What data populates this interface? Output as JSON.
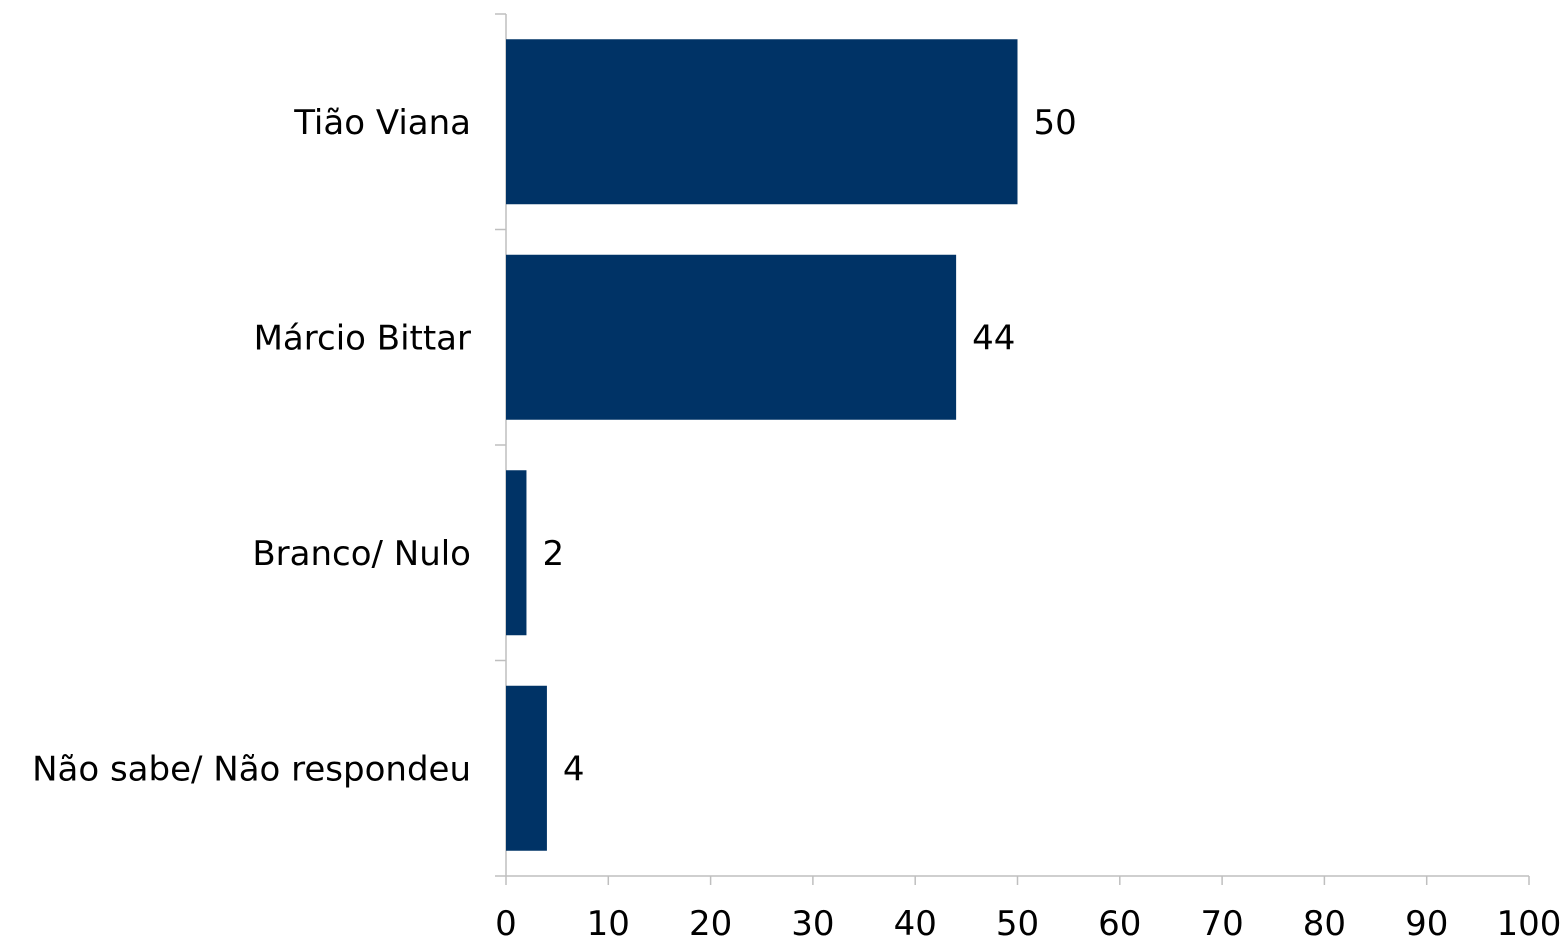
{
  "chart_data": {
    "type": "bar",
    "orientation": "horizontal",
    "categories": [
      "Tião Viana",
      "Márcio Bittar",
      "Branco/ Nulo",
      "Não sabe/ Não respondeu"
    ],
    "values": [
      50,
      44,
      2,
      4
    ],
    "data_labels": [
      "50",
      "44",
      "2",
      "4"
    ],
    "xlim": [
      0,
      100
    ],
    "x_ticks": [
      0,
      10,
      20,
      30,
      40,
      50,
      60,
      70,
      80,
      90,
      100
    ],
    "x_tick_labels": [
      "0",
      "10",
      "20",
      "30",
      "40",
      "50",
      "60",
      "70",
      "80",
      "90",
      "100"
    ],
    "title": "",
    "xlabel": "",
    "ylabel": "",
    "grid": false,
    "legend": "none",
    "bar_color": "#003366"
  }
}
